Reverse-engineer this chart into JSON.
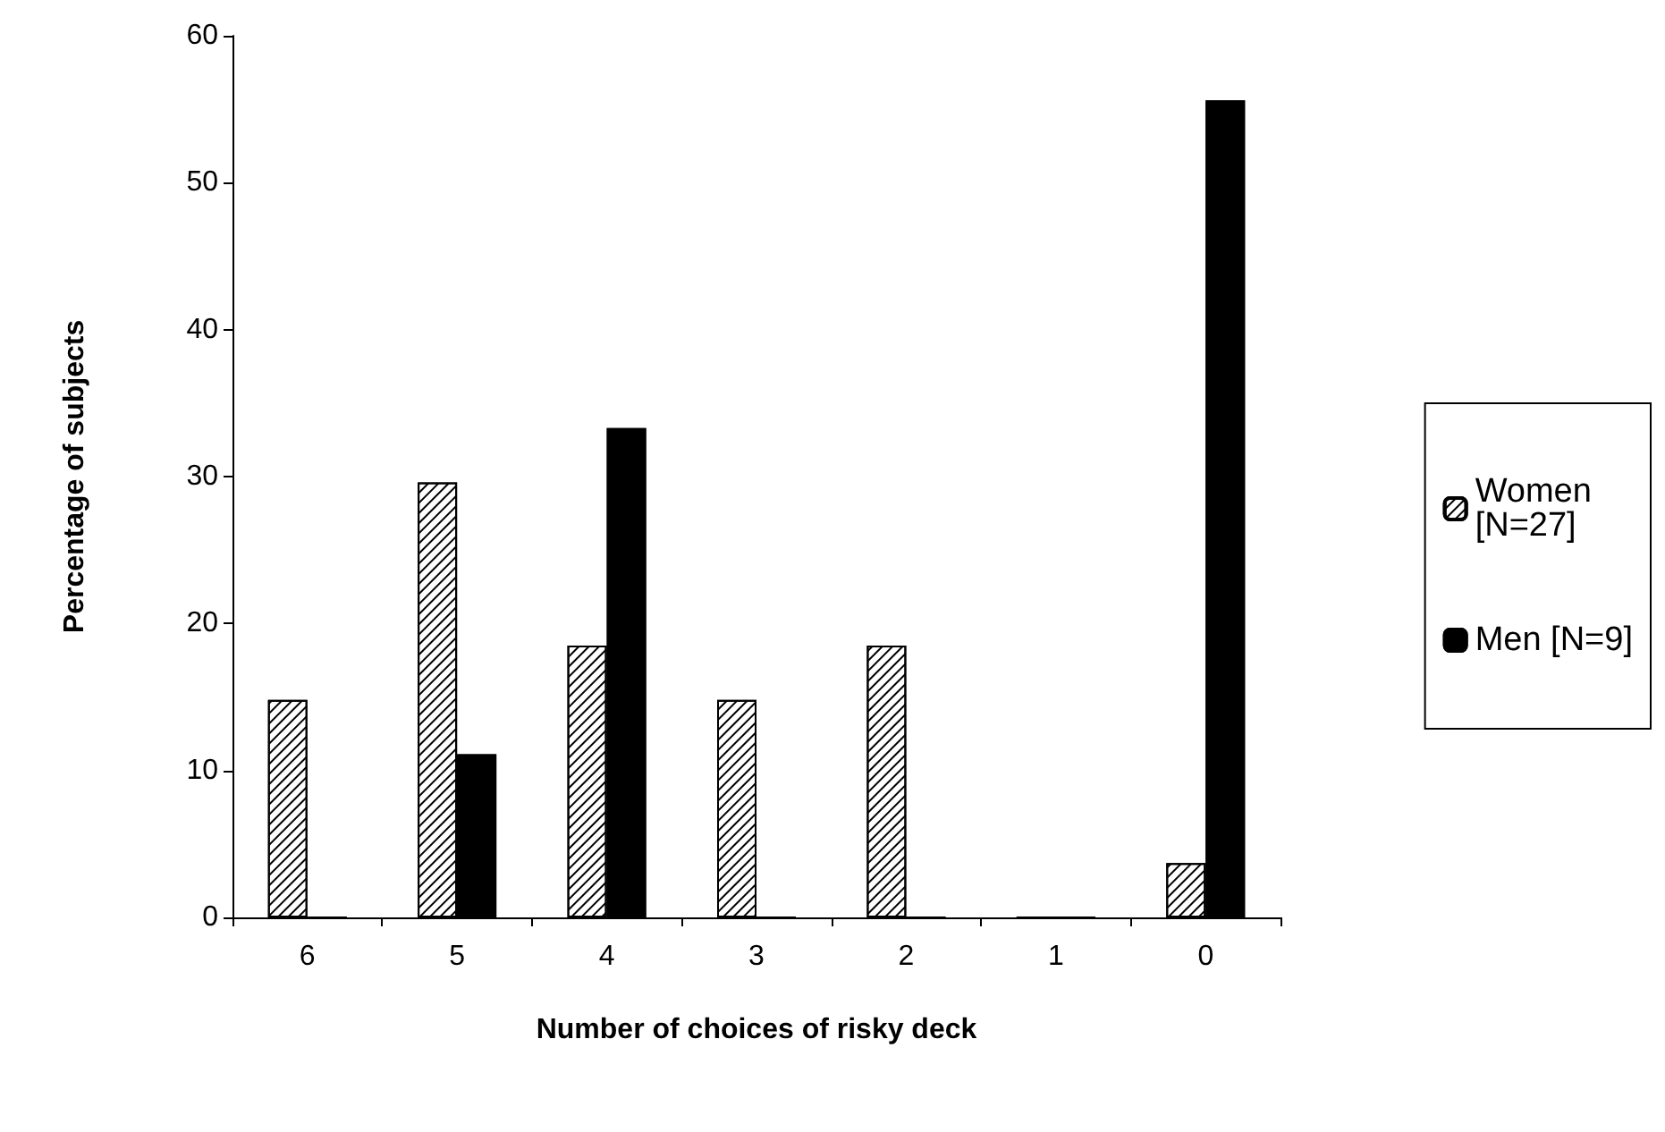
{
  "chart_data": {
    "type": "bar",
    "xlabel": "Number of choices of risky deck",
    "ylabel": "Percentage of subjects",
    "categories": [
      "6",
      "5",
      "4",
      "3",
      "2",
      "1",
      "0"
    ],
    "series": [
      {
        "name": "Women [N=27]",
        "color": "#ffffff",
        "values": [
          14.8,
          29.6,
          18.5,
          14.8,
          18.5,
          0,
          3.7
        ]
      },
      {
        "name": "Men [N=9]",
        "color": "#000000",
        "values": [
          0,
          11.1,
          33.3,
          0,
          0,
          0,
          55.6
        ]
      }
    ],
    "ylim": [
      0,
      60
    ],
    "yticks": [
      0,
      10,
      20,
      30,
      40,
      50,
      60
    ],
    "grid": false,
    "legend": "right"
  }
}
